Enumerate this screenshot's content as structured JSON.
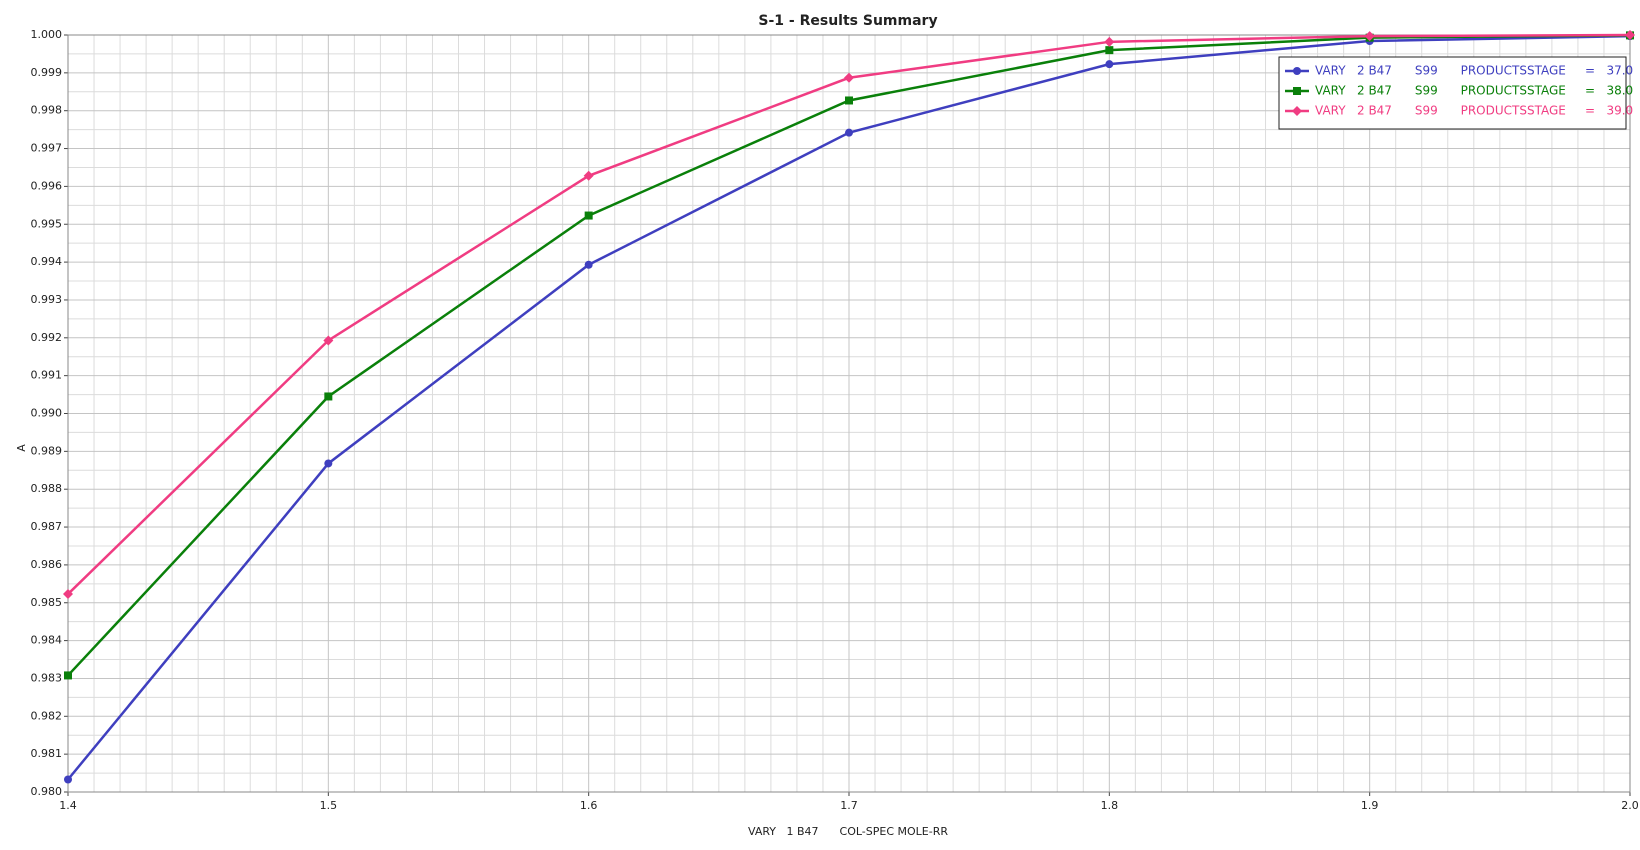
{
  "chart_data": {
    "type": "line",
    "title": "S-1 - Results Summary",
    "xlabel": "VARY   1 B47      COL-SPEC MOLE-RR",
    "ylabel": "A",
    "x": [
      1.4,
      1.5,
      1.6,
      1.7,
      1.8,
      1.9,
      2.0
    ],
    "series": [
      {
        "name": "VARY   2 B47      S99      PRODUCTSSTAGE     =   37.0",
        "color": "#3f3fbf",
        "marker": "circle",
        "values": [
          0.98033,
          0.98868,
          0.99393,
          0.99742,
          0.99923,
          0.99984,
          0.99997
        ]
      },
      {
        "name": "VARY   2 B47      S99      PRODUCTSSTAGE     =   38.0",
        "color": "#0a800a",
        "marker": "square",
        "values": [
          0.98308,
          0.99045,
          0.99523,
          0.99827,
          0.9996,
          0.99993,
          0.99999
        ]
      },
      {
        "name": "VARY   2 B47      S99      PRODUCTSSTAGE     =   39.0",
        "color": "#f03c82",
        "marker": "diamond",
        "values": [
          0.98523,
          0.99193,
          0.99628,
          0.99887,
          0.99982,
          0.99997,
          1.0
        ]
      }
    ],
    "xlim": [
      1.4,
      2.0
    ],
    "ylim": [
      0.98,
      1.0
    ],
    "xticks": [
      1.4,
      1.5,
      1.6,
      1.7,
      1.8,
      1.9,
      {
        "value": 2.0,
        "label": "2.0"
      }
    ],
    "yticks": [
      {
        "value": 0.98,
        "label": "0.980"
      },
      0.981,
      0.982,
      0.983,
      0.984,
      0.985,
      0.986,
      0.987,
      0.988,
      0.989,
      {
        "value": 0.99,
        "label": "0.990"
      },
      0.991,
      0.992,
      0.993,
      0.994,
      0.995,
      0.996,
      0.997,
      0.998,
      0.999,
      {
        "value": 1.0,
        "label": "1.000"
      }
    ],
    "grid": true,
    "minor_grid": {
      "x": 10,
      "y": 2
    },
    "legend": "upper right"
  }
}
